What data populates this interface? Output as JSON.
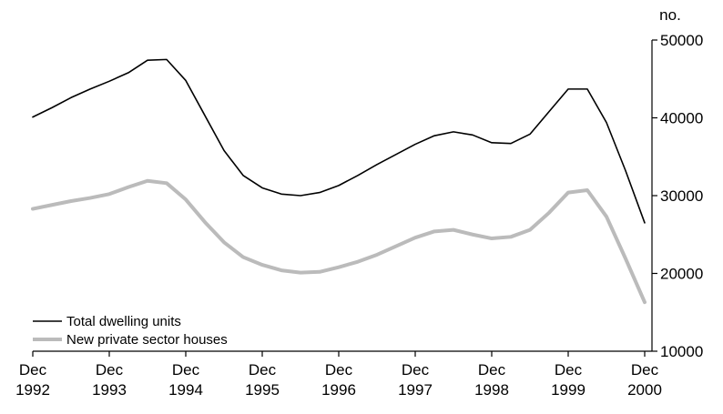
{
  "chart_data": {
    "type": "line",
    "title": "",
    "xlabel": "",
    "ylabel": "no.",
    "ylim": [
      10000,
      50000
    ],
    "yticks": [
      10000,
      20000,
      30000,
      40000,
      50000
    ],
    "y_axis_side": "right",
    "xlim": [
      0,
      32
    ],
    "x_ticks": [
      {
        "x": 0,
        "label": [
          "Dec",
          "1992"
        ]
      },
      {
        "x": 4,
        "label": [
          "Dec",
          "1993"
        ]
      },
      {
        "x": 8,
        "label": [
          "Dec",
          "1994"
        ]
      },
      {
        "x": 12,
        "label": [
          "Dec",
          "1995"
        ]
      },
      {
        "x": 16,
        "label": [
          "Dec",
          "1996"
        ]
      },
      {
        "x": 20,
        "label": [
          "Dec",
          "1997"
        ]
      },
      {
        "x": 24,
        "label": [
          "Dec",
          "1998"
        ]
      },
      {
        "x": 28,
        "label": [
          "Dec",
          "1999"
        ]
      },
      {
        "x": 32,
        "label": [
          "Dec",
          "2000"
        ]
      }
    ],
    "x": [
      0,
      1,
      2,
      3,
      4,
      5,
      6,
      7,
      8,
      9,
      10,
      11,
      12,
      13,
      14,
      15,
      16,
      17,
      18,
      19,
      20,
      21,
      22,
      23,
      24,
      25,
      26,
      27,
      28,
      29,
      30,
      31,
      32
    ],
    "series": [
      {
        "name": "Total dwelling units",
        "color": "#000000",
        "values": [
          40100,
          41300,
          42600,
          43700,
          44700,
          45800,
          47400,
          47500,
          44800,
          40300,
          35800,
          32600,
          31000,
          30200,
          30000,
          30400,
          31300,
          32600,
          34000,
          35300,
          36600,
          37700,
          38200,
          37800,
          36800,
          36700,
          37900,
          40800,
          43700,
          43700,
          39400,
          33200,
          26500
        ]
      },
      {
        "name": "New private sector houses",
        "color": "#bbbbbb",
        "values": [
          28300,
          28800,
          29300,
          29700,
          30200,
          31100,
          31900,
          31600,
          29500,
          26600,
          24000,
          22100,
          21100,
          20400,
          20100,
          20200,
          20800,
          21500,
          22400,
          23500,
          24600,
          25400,
          25600,
          25000,
          24500,
          24700,
          25600,
          27800,
          30400,
          30700,
          27300,
          21900,
          16300
        ]
      }
    ],
    "legend": {
      "position": "bottom-left",
      "entries": [
        "Total dwelling units",
        "New private sector houses"
      ]
    },
    "grid": false
  }
}
